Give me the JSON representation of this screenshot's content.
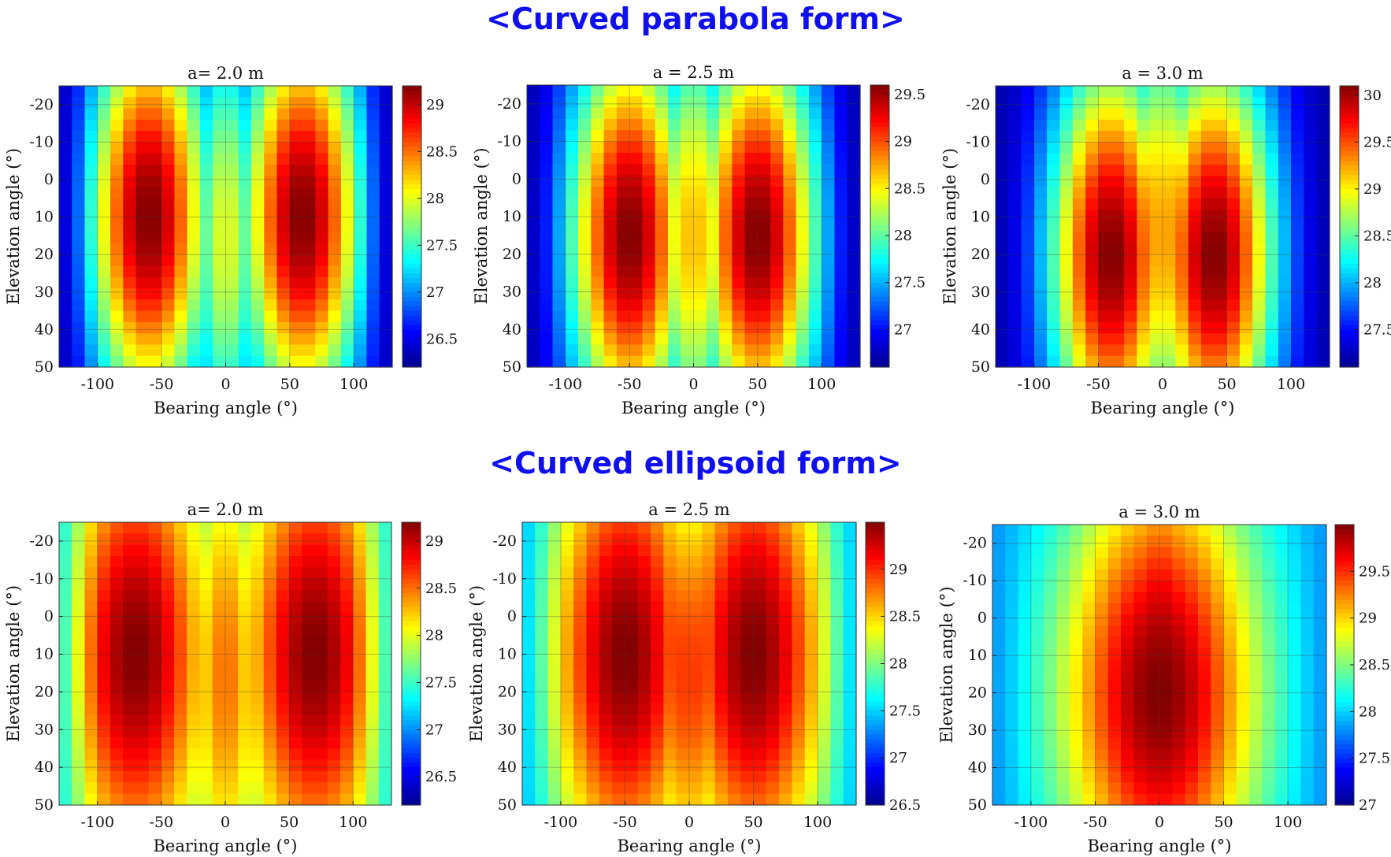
{
  "sections": [
    {
      "title": "<Curved parabola form>"
    },
    {
      "title": "<Curved ellipsoid form>"
    }
  ],
  "colormap": [
    "#00008f",
    "#0000ff",
    "#0080ff",
    "#00ffff",
    "#80ff80",
    "#ffff00",
    "#ff8000",
    "#ff0000",
    "#800000"
  ],
  "chart_data": [
    {
      "type": "heatmap",
      "section": "<Curved parabola form>",
      "title": "a= 2.0 m",
      "xlabel": "Bearing angle (°)",
      "ylabel": "Elevation angle (°)",
      "xlim": [
        -130,
        130
      ],
      "ylim": [
        -25,
        50
      ],
      "y_reversed": true,
      "xticks": [
        -100,
        -50,
        0,
        50,
        100
      ],
      "yticks": [
        -20,
        -10,
        0,
        10,
        20,
        30,
        40,
        50
      ],
      "clim": [
        26.2,
        29.2
      ],
      "cbar_ticks": [
        26.5,
        27,
        27.5,
        28,
        28.5,
        29
      ],
      "peaks": [
        {
          "bearing": -60,
          "elevation": 10,
          "value": 29.2
        },
        {
          "bearing": 60,
          "elevation": 10,
          "value": 29.2
        }
      ],
      "peak_width_bearing": 62,
      "peak_width_elevation": 70,
      "center_value": 28.0,
      "edge_value": 26.3,
      "grid": true
    },
    {
      "type": "heatmap",
      "section": "<Curved parabola form>",
      "title": "a = 2.5 m",
      "xlabel": "Bearing angle (°)",
      "ylabel": "Elevation angle (°)",
      "xlim": [
        -130,
        130
      ],
      "ylim": [
        -25,
        50
      ],
      "y_reversed": true,
      "xticks": [
        -100,
        -50,
        0,
        50,
        100
      ],
      "yticks": [
        -20,
        -10,
        0,
        10,
        20,
        30,
        40,
        50
      ],
      "clim": [
        26.6,
        29.6
      ],
      "cbar_ticks": [
        27,
        27.5,
        28,
        28.5,
        29,
        29.5
      ],
      "peaks": [
        {
          "bearing": -50,
          "elevation": 15,
          "value": 29.6
        },
        {
          "bearing": 50,
          "elevation": 15,
          "value": 29.6
        }
      ],
      "peak_width_bearing": 62,
      "peak_width_elevation": 70,
      "center_value": 28.7,
      "edge_value": 26.7,
      "grid": true
    },
    {
      "type": "heatmap",
      "section": "<Curved parabola form>",
      "title": "a = 3.0 m",
      "xlabel": "Bearing angle (°)",
      "ylabel": "Elevation angle (°)",
      "xlim": [
        -130,
        130
      ],
      "ylim": [
        -25,
        50
      ],
      "y_reversed": true,
      "xticks": [
        -100,
        -50,
        0,
        50,
        100
      ],
      "yticks": [
        -20,
        -10,
        0,
        10,
        20,
        30,
        40,
        50
      ],
      "clim": [
        27.1,
        30.1
      ],
      "cbar_ticks": [
        27.5,
        28,
        28.5,
        29,
        29.5,
        30
      ],
      "peaks": [
        {
          "bearing": -40,
          "elevation": 20,
          "value": 30.1
        },
        {
          "bearing": 40,
          "elevation": 20,
          "value": 30.1
        }
      ],
      "peak_width_bearing": 62,
      "peak_width_elevation": 70,
      "center_value": 29.3,
      "edge_value": 27.2,
      "grid": true
    },
    {
      "type": "heatmap",
      "section": "<Curved ellipsoid form>",
      "title": "a= 2.0 m",
      "xlabel": "Bearing angle (°)",
      "ylabel": "Elevation angle (°)",
      "xlim": [
        -130,
        130
      ],
      "ylim": [
        -25,
        50
      ],
      "y_reversed": true,
      "xticks": [
        -100,
        -50,
        0,
        50,
        100
      ],
      "yticks": [
        -20,
        -10,
        0,
        10,
        20,
        30,
        40,
        50
      ],
      "clim": [
        26.2,
        29.2
      ],
      "cbar_ticks": [
        26.5,
        27,
        27.5,
        28,
        28.5,
        29
      ],
      "peaks": [
        {
          "bearing": -70,
          "elevation": 10,
          "value": 29.2
        },
        {
          "bearing": 70,
          "elevation": 10,
          "value": 29.2
        }
      ],
      "peak_width_bearing": 72,
      "peak_width_elevation": 75,
      "center_value": 28.5,
      "edge_value": 27.3,
      "grid": true
    },
    {
      "type": "heatmap",
      "section": "<Curved ellipsoid form>",
      "title": "a = 2.5 m",
      "xlabel": "Bearing angle (°)",
      "ylabel": "Elevation angle (°)",
      "xlim": [
        -130,
        130
      ],
      "ylim": [
        -25,
        50
      ],
      "y_reversed": true,
      "xticks": [
        -100,
        -50,
        0,
        50,
        100
      ],
      "yticks": [
        -20,
        -10,
        0,
        10,
        20,
        30,
        40,
        50
      ],
      "clim": [
        26.5,
        29.5
      ],
      "cbar_ticks": [
        26.5,
        27,
        27.5,
        28,
        28.5,
        29
      ],
      "peaks": [
        {
          "bearing": -50,
          "elevation": 10,
          "value": 29.5
        },
        {
          "bearing": 50,
          "elevation": 10,
          "value": 29.5
        }
      ],
      "peak_width_bearing": 78,
      "peak_width_elevation": 80,
      "center_value": 29.0,
      "edge_value": 27.4,
      "grid": true
    },
    {
      "type": "heatmap",
      "section": "<Curved ellipsoid form>",
      "title": "a = 3.0 m",
      "xlabel": "Bearing angle (°)",
      "ylabel": "Elevation angle (°)",
      "xlim": [
        -130,
        130
      ],
      "ylim": [
        -25,
        50
      ],
      "y_reversed": true,
      "xticks": [
        -100,
        -50,
        0,
        50,
        100
      ],
      "yticks": [
        -20,
        -10,
        0,
        10,
        20,
        30,
        40,
        50
      ],
      "clim": [
        27.0,
        30.0
      ],
      "cbar_ticks": [
        27,
        27.5,
        28,
        28.5,
        29,
        29.5
      ],
      "peaks": [
        {
          "bearing": 0,
          "elevation": 20,
          "value": 30.0
        }
      ],
      "peak_width_bearing": 100,
      "peak_width_elevation": 80,
      "center_value": 30.0,
      "edge_value": 27.8,
      "grid": true
    }
  ]
}
